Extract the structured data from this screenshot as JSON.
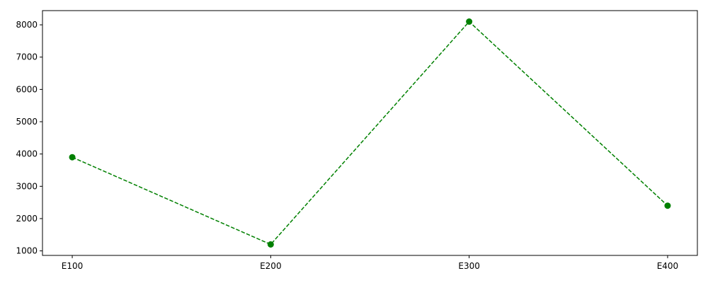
{
  "chart_data": {
    "type": "line",
    "categories": [
      "E100",
      "E200",
      "E300",
      "E400"
    ],
    "series": [
      {
        "values": [
          3900,
          1200,
          8100,
          2400
        ],
        "color": "#008000",
        "line_style": "dashed",
        "marker": "circle"
      }
    ],
    "title": "",
    "xlabel": "",
    "ylabel": "",
    "ylim": [
      860,
      8440
    ],
    "yticks": [
      1000,
      2000,
      3000,
      4000,
      5000,
      6000,
      7000,
      8000
    ],
    "grid": false,
    "legend": "none"
  }
}
